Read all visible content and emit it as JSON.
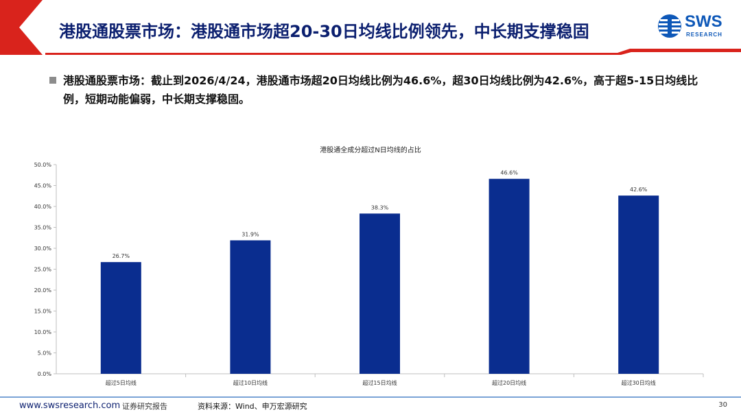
{
  "header": {
    "title": "港股通股票市场：港股通市场超20-30日均线比例领先，中长期支撑稳固",
    "logo_text": "SWS",
    "logo_sub": "RESEARCH"
  },
  "summary": {
    "text": "港股通股票市场：截止到2026/4/24，港股通市场超20日均线比例为46.6%，超30日均线比例为42.6%，高于超5-15日均线比例，短期动能偏弱，中长期支撑稳固。"
  },
  "chart_data": {
    "type": "bar",
    "title": "港股通全成分超过N日均线的占比",
    "categories": [
      "超过5日均线",
      "超过10日均线",
      "超过15日均线",
      "超过20日均线",
      "超过30日均线"
    ],
    "values": [
      26.7,
      31.9,
      38.3,
      46.6,
      42.6
    ],
    "data_labels": [
      "26.7%",
      "31.9%",
      "38.3%",
      "46.6%",
      "42.6%"
    ],
    "ylim": [
      0,
      50
    ],
    "yticks": [
      "0.0%",
      "5.0%",
      "10.0%",
      "15.0%",
      "20.0%",
      "25.0%",
      "30.0%",
      "35.0%",
      "40.0%",
      "45.0%",
      "50.0%"
    ],
    "xlabel": "",
    "ylabel": "",
    "grid": false,
    "bar_color": "#0a2d8f"
  },
  "footer": {
    "url": "www.swsresearch.com",
    "type": "证券研究报告",
    "source": "资料来源：Wind、申万宏源研究",
    "page": "30"
  },
  "colors": {
    "accent_red": "#d9231c",
    "title_navy": "#0b1f6f",
    "logo_blue": "#0e58b8"
  }
}
